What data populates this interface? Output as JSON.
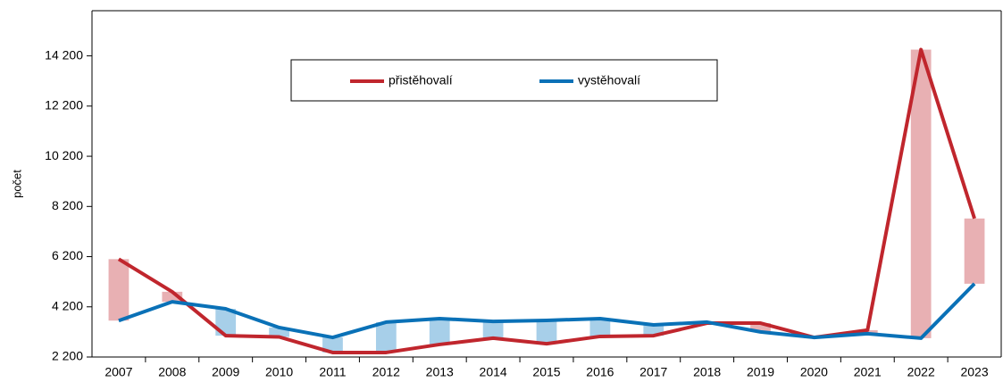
{
  "chart_data": {
    "type": "line",
    "y_label": "počet",
    "categories": [
      "2007",
      "2008",
      "2009",
      "2010",
      "2011",
      "2012",
      "2013",
      "2014",
      "2015",
      "2016",
      "2017",
      "2018",
      "2019",
      "2020",
      "2021",
      "2022",
      "2023"
    ],
    "series": [
      {
        "name": "přistěhovalí",
        "color": "#c0262d",
        "values": [
          6100,
          4800,
          3050,
          3000,
          2380,
          2380,
          2700,
          2950,
          2730,
          3020,
          3050,
          3550,
          3550,
          2980,
          3270,
          14450,
          7720
        ]
      },
      {
        "name": "vystěhovalí",
        "color": "#0a71b7",
        "values": [
          3650,
          4400,
          4120,
          3375,
          2980,
          3590,
          3730,
          3620,
          3660,
          3730,
          3480,
          3590,
          3200,
          2980,
          3130,
          2950,
          5120
        ]
      }
    ],
    "up_bar_color": "#e8b0b3",
    "down_bar_color": "#a7cfe9",
    "ylim": [
      2200,
      16000
    ],
    "yticks": [
      {
        "value": 2200,
        "label": "2 200"
      },
      {
        "value": 4200,
        "label": "4 200"
      },
      {
        "value": 6200,
        "label": "6 200"
      },
      {
        "value": 8200,
        "label": "8 200"
      },
      {
        "value": 10200,
        "label": "10 200"
      },
      {
        "value": 12200,
        "label": "12 200"
      },
      {
        "value": 14200,
        "label": "14 200"
      }
    ],
    "legend": "top"
  }
}
